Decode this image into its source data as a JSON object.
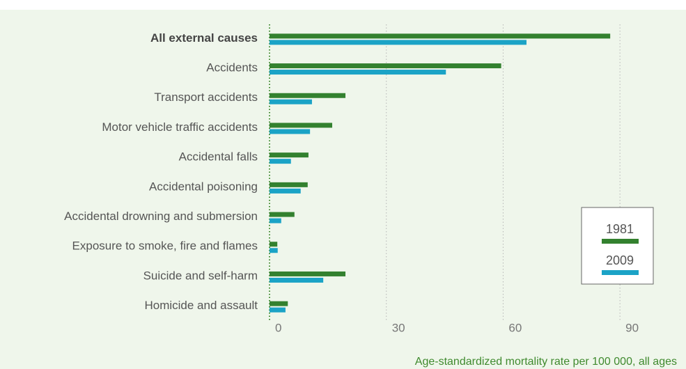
{
  "chart_data": {
    "type": "bar",
    "categories": [
      "All external causes",
      "Accidents",
      "Transport accidents",
      "Motor vehicle traffic accidents",
      "Accidental falls",
      "Accidental poisoning",
      "Accidental drowning and submersion",
      "Exposure to smoke, fire and flames",
      "Suicide and self-harm",
      "Homicide and assault"
    ],
    "series": [
      {
        "name": "1981",
        "color": "#33812f",
        "values": [
          87.5,
          59.5,
          19.5,
          16.1,
          10.0,
          9.8,
          6.4,
          2.0,
          19.5,
          4.7
        ]
      },
      {
        "name": "2009",
        "color": "#1ba3c6",
        "values": [
          66.0,
          45.3,
          10.9,
          10.4,
          5.5,
          8.0,
          3.0,
          2.1,
          13.8,
          4.1
        ]
      }
    ],
    "x_label": "Age-standardized mortality rate per 100 000, all ages",
    "xlim": [
      0,
      105
    ],
    "xticks": [
      0,
      30,
      60,
      90
    ],
    "grid": true,
    "legend": "right"
  }
}
